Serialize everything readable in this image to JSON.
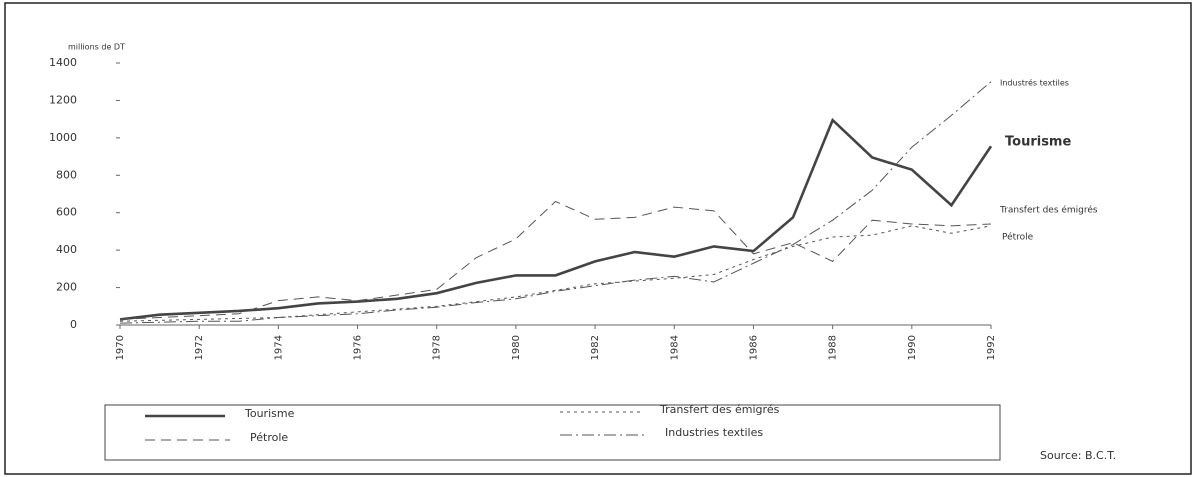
{
  "chart_data": {
    "type": "line",
    "y_axis_label": "millions de DT",
    "x": [
      1970,
      1971,
      1972,
      1973,
      1974,
      1975,
      1976,
      1977,
      1978,
      1979,
      1980,
      1981,
      1982,
      1983,
      1984,
      1985,
      1986,
      1987,
      1988,
      1989,
      1990,
      1991,
      1992
    ],
    "xlim": [
      1970,
      1992
    ],
    "xticks": [
      1970,
      1972,
      1974,
      1976,
      1978,
      1980,
      1982,
      1984,
      1986,
      1988,
      1990,
      1992
    ],
    "ylim": [
      0,
      1400
    ],
    "yticks": [
      0,
      200,
      400,
      600,
      800,
      1000,
      1200,
      1400
    ],
    "grid": false,
    "series": [
      {
        "name": "Tourisme",
        "color": "#444444",
        "dash": "solid",
        "values": [
          30,
          55,
          65,
          75,
          90,
          115,
          125,
          140,
          170,
          225,
          265,
          265,
          340,
          390,
          365,
          420,
          395,
          575,
          1095,
          895,
          830,
          640,
          955
        ]
      },
      {
        "name": "Pétrole",
        "color": "#555555",
        "dash": "dashed",
        "values": [
          30,
          40,
          50,
          60,
          130,
          150,
          130,
          160,
          190,
          360,
          460,
          660,
          565,
          575,
          630,
          610,
          380,
          440,
          340,
          560,
          540,
          530,
          540
        ]
      },
      {
        "name": "Transfert des émigrés",
        "color": "#555555",
        "dash": "dotted",
        "values": [
          20,
          25,
          30,
          35,
          40,
          55,
          70,
          85,
          100,
          125,
          150,
          185,
          220,
          235,
          250,
          270,
          350,
          420,
          470,
          480,
          530,
          490,
          530
        ]
      },
      {
        "name": "Industries textiles",
        "color": "#555555",
        "dash": "dashdot",
        "values": [
          10,
          15,
          20,
          20,
          40,
          50,
          60,
          80,
          95,
          120,
          140,
          180,
          210,
          240,
          260,
          230,
          330,
          430,
          560,
          720,
          950,
          1120,
          1300
        ]
      }
    ],
    "annotations": [
      "Industrés textiles",
      "Tourisme",
      "Transfert des émigrés",
      "Pétrole"
    ],
    "source": "Source: B.C.T."
  }
}
